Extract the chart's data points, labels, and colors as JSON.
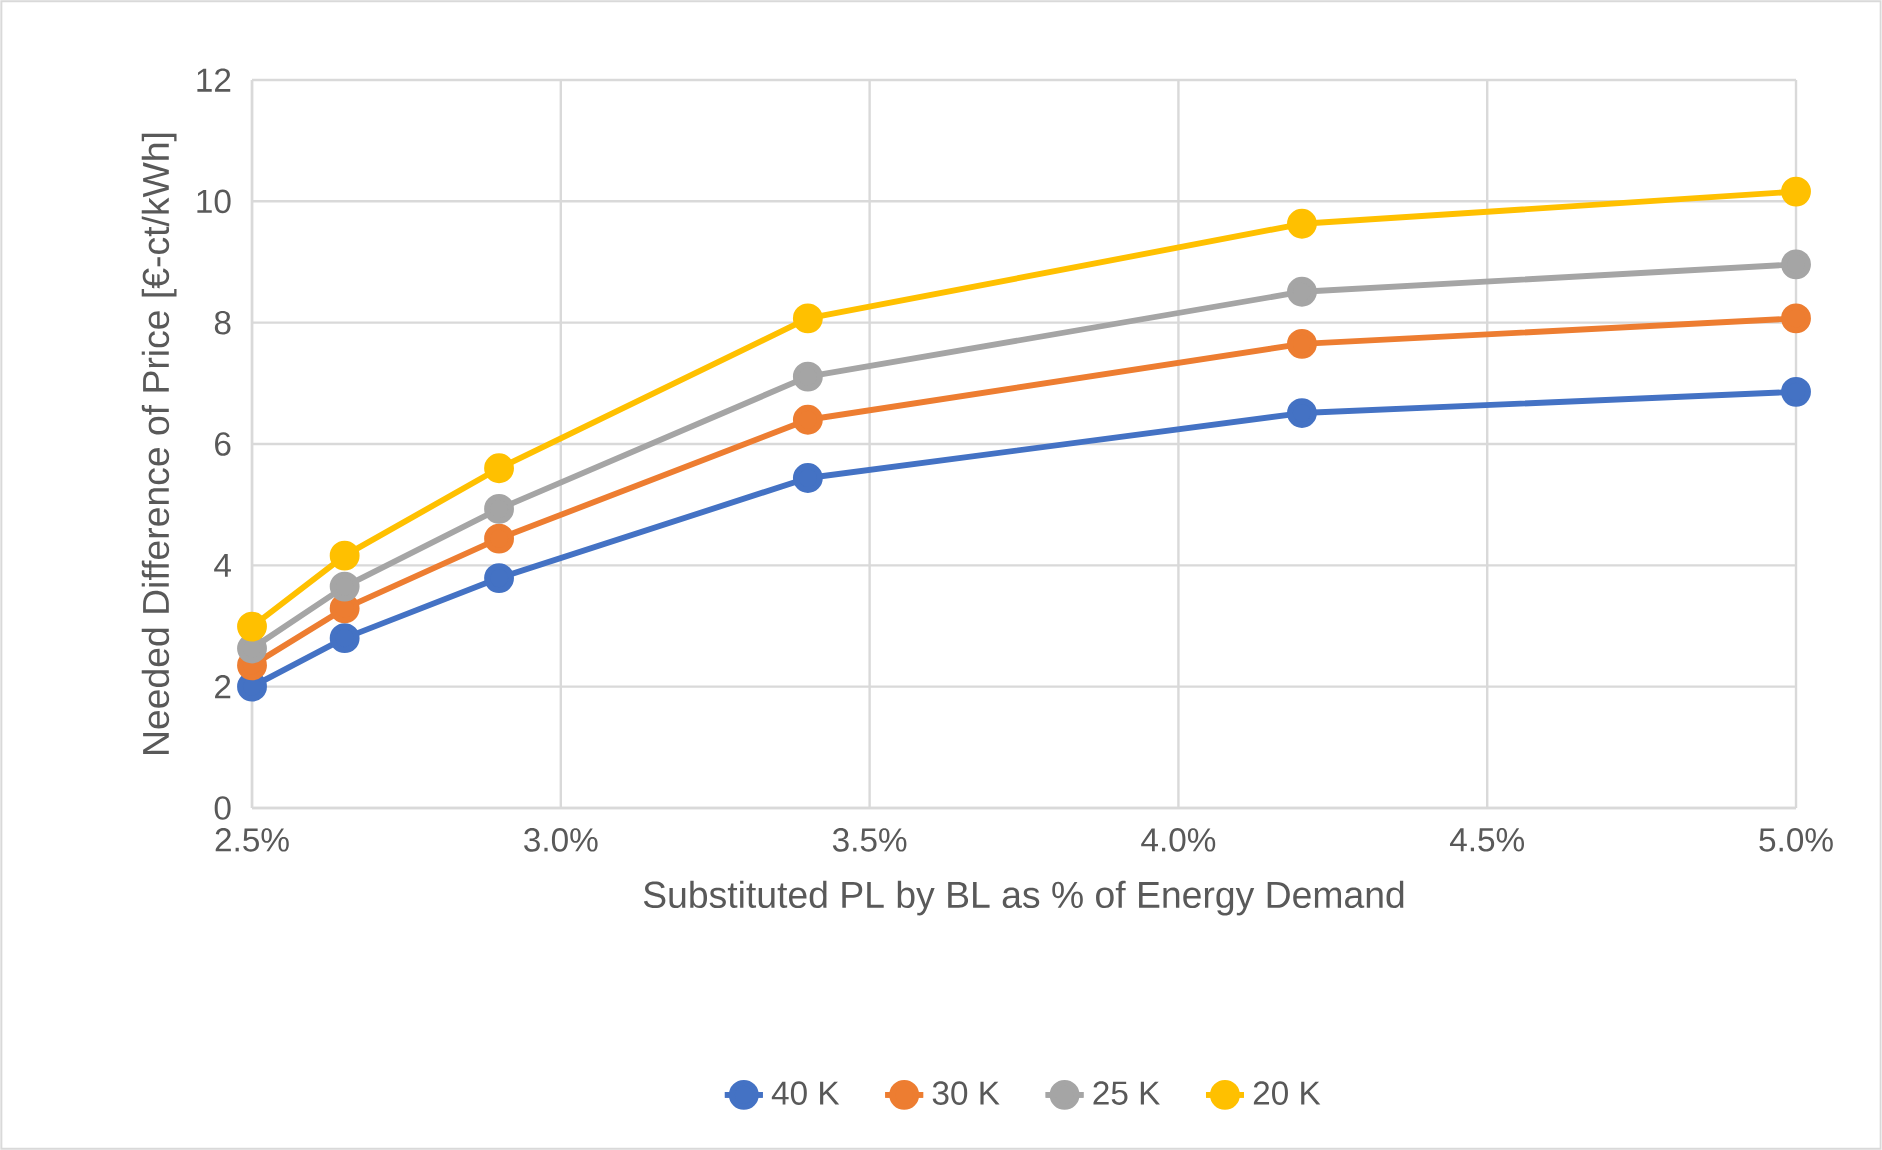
{
  "chart_data": {
    "type": "line",
    "xlabel": "Substituted PL by BL as % of Energy Demand",
    "ylabel": "Needed Difference of Price [€-ct/kWh]",
    "x": [
      2.5,
      2.65,
      2.9,
      3.4,
      4.2,
      5.0
    ],
    "series": [
      {
        "name": "40 K",
        "color": "#4472c4",
        "values": [
          2.0,
          2.8,
          3.79,
          5.44,
          6.51,
          6.86
        ]
      },
      {
        "name": "30 K",
        "color": "#ed7d31",
        "values": [
          2.35,
          3.29,
          4.44,
          6.4,
          7.65,
          8.07
        ]
      },
      {
        "name": "25 K",
        "color": "#a5a5a5",
        "values": [
          2.63,
          3.65,
          4.93,
          7.11,
          8.51,
          8.96
        ]
      },
      {
        "name": "20 K",
        "color": "#ffc000",
        "values": [
          2.99,
          4.16,
          5.6,
          8.07,
          9.63,
          10.16
        ]
      }
    ],
    "xlim": [
      2.5,
      5.0
    ],
    "ylim": [
      0,
      12
    ],
    "xticks": [
      {
        "value": 2.5,
        "label": "2.5%"
      },
      {
        "value": 3.0,
        "label": "3.0%"
      },
      {
        "value": 3.5,
        "label": "3.5%"
      },
      {
        "value": 4.0,
        "label": "4.0%"
      },
      {
        "value": 4.5,
        "label": "4.5%"
      },
      {
        "value": 5.0,
        "label": "5.0%"
      }
    ],
    "yticks": [
      0,
      2,
      4,
      6,
      8,
      10,
      12
    ],
    "grid": true,
    "legend": "bottom",
    "marker": "circle",
    "line_style": "solid"
  }
}
